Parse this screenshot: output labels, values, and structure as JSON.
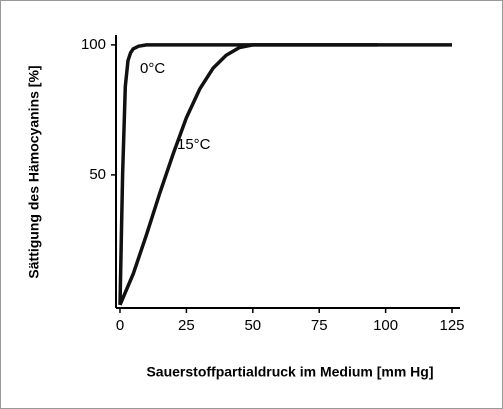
{
  "chart_data": {
    "type": "line",
    "x_label": "Sauerstoffpartialdruck im Medium [mm Hg]",
    "y_label": "Sättigung des Hämocyanins [%]",
    "xlim": [
      -1.5,
      128
    ],
    "xticks": [
      0,
      25,
      50,
      75,
      100,
      125
    ],
    "ylim": [
      -1.2,
      103.8
    ],
    "yticks": [
      50,
      100
    ],
    "series": [
      {
        "name": "0°C",
        "color": "#111111",
        "x": [
          0,
          1,
          2,
          3,
          4,
          5,
          7,
          10,
          15,
          125
        ],
        "values": [
          0,
          50,
          84,
          94,
          97,
          98.5,
          99.5,
          100,
          100,
          100
        ]
      },
      {
        "name": "15°C",
        "color": "#111111",
        "x": [
          0,
          5,
          10,
          15,
          20,
          25,
          30,
          35,
          40,
          45,
          50,
          60,
          97
        ],
        "values": [
          0,
          12,
          27,
          43,
          58,
          72,
          83,
          91,
          96,
          99,
          100,
          100,
          100
        ]
      }
    ]
  }
}
